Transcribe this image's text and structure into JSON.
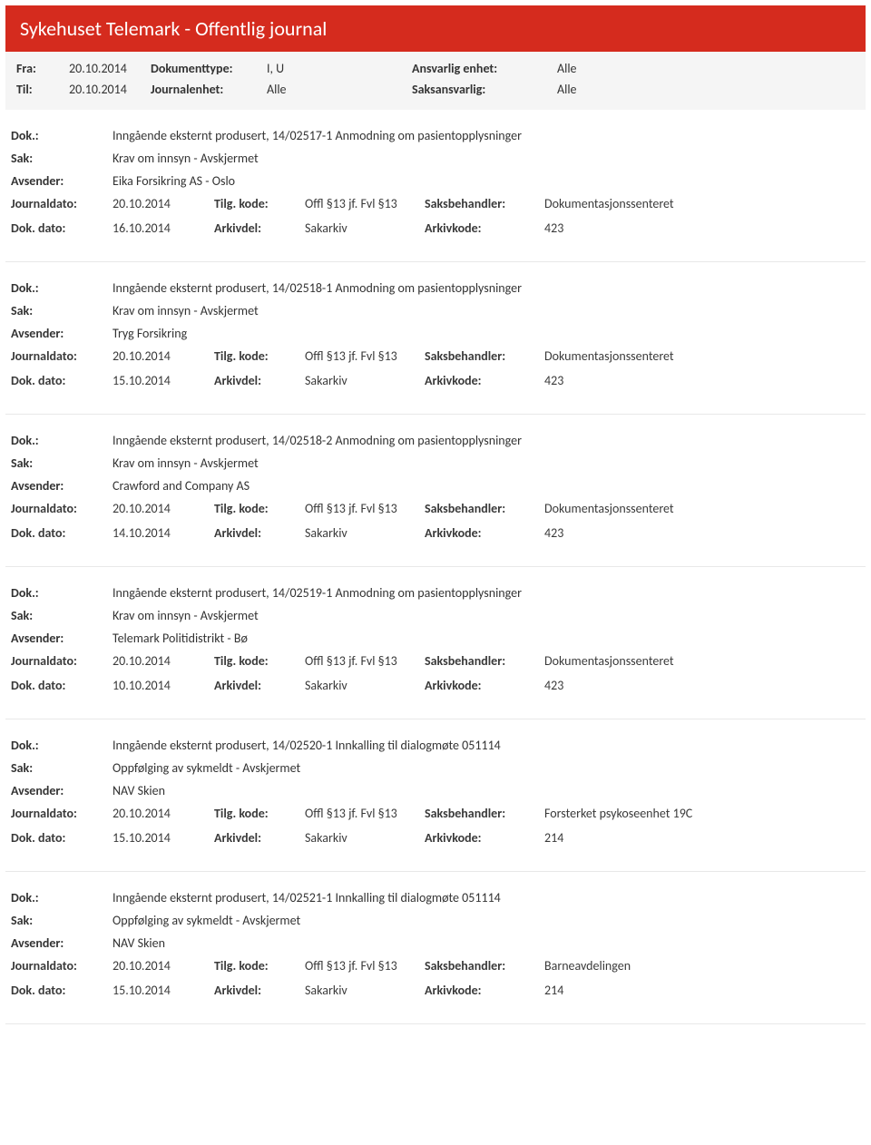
{
  "header": {
    "title": "Sykehuset Telemark - Offentlig journal"
  },
  "filters": {
    "fra_label": "Fra:",
    "fra_value": "20.10.2014",
    "til_label": "Til:",
    "til_value": "20.10.2014",
    "doktype_label": "Dokumenttype:",
    "doktype_value": "I, U",
    "journalenhet_label": "Journalenhet:",
    "journalenhet_value": "Alle",
    "ansvarlig_label": "Ansvarlig enhet:",
    "ansvarlig_value": "Alle",
    "saksansvarlig_label": "Saksansvarlig:",
    "saksansvarlig_value": "Alle"
  },
  "labels": {
    "dok": "Dok.:",
    "sak": "Sak:",
    "avsender": "Avsender:",
    "journaldato": "Journaldato:",
    "dokdato": "Dok. dato:",
    "tilgkode": "Tilg. kode:",
    "arkivdel": "Arkivdel:",
    "saksbehandler": "Saksbehandler:",
    "arkivkode": "Arkivkode:"
  },
  "entries": [
    {
      "dok": "Inngående eksternt produsert, 14/02517-1 Anmodning om pasientopplysninger",
      "sak": "Krav om innsyn - Avskjermet",
      "avsender": "Eika Forsikring AS - Oslo",
      "journaldato": "20.10.2014",
      "dokdato": "16.10.2014",
      "tilgkode": "Offl §13 jf. Fvl §13",
      "arkivdel": "Sakarkiv",
      "saksbehandler": "Dokumentasjonssenteret",
      "arkivkode": "423"
    },
    {
      "dok": "Inngående eksternt produsert, 14/02518-1 Anmodning om pasientopplysninger",
      "sak": "Krav om innsyn - Avskjermet",
      "avsender": "Tryg Forsikring",
      "journaldato": "20.10.2014",
      "dokdato": "15.10.2014",
      "tilgkode": "Offl §13 jf. Fvl §13",
      "arkivdel": "Sakarkiv",
      "saksbehandler": "Dokumentasjonssenteret",
      "arkivkode": "423"
    },
    {
      "dok": "Inngående eksternt produsert, 14/02518-2 Anmodning om pasientopplysninger",
      "sak": "Krav om innsyn - Avskjermet",
      "avsender": "Crawford and Company AS",
      "journaldato": "20.10.2014",
      "dokdato": "14.10.2014",
      "tilgkode": "Offl §13 jf. Fvl §13",
      "arkivdel": "Sakarkiv",
      "saksbehandler": "Dokumentasjonssenteret",
      "arkivkode": "423"
    },
    {
      "dok": "Inngående eksternt produsert, 14/02519-1 Anmodning om pasientopplysninger",
      "sak": "Krav om innsyn - Avskjermet",
      "avsender": "Telemark Politidistrikt - Bø",
      "journaldato": "20.10.2014",
      "dokdato": "10.10.2014",
      "tilgkode": "Offl §13 jf. Fvl §13",
      "arkivdel": "Sakarkiv",
      "saksbehandler": "Dokumentasjonssenteret",
      "arkivkode": "423"
    },
    {
      "dok": "Inngående eksternt produsert, 14/02520-1 Innkalling til dialogmøte 051114",
      "sak": "Oppfølging av sykmeldt - Avskjermet",
      "avsender": "NAV Skien",
      "journaldato": "20.10.2014",
      "dokdato": "15.10.2014",
      "tilgkode": "Offl §13 jf. Fvl §13",
      "arkivdel": "Sakarkiv",
      "saksbehandler": "Forsterket psykoseenhet 19C",
      "arkivkode": "214"
    },
    {
      "dok": "Inngående eksternt produsert, 14/02521-1 Innkalling til dialogmøte 051114",
      "sak": "Oppfølging av sykmeldt - Avskjermet",
      "avsender": "NAV Skien",
      "journaldato": "20.10.2014",
      "dokdato": "15.10.2014",
      "tilgkode": "Offl §13 jf. Fvl §13",
      "arkivdel": "Sakarkiv",
      "saksbehandler": "Barneavdelingen",
      "arkivkode": "214"
    }
  ]
}
